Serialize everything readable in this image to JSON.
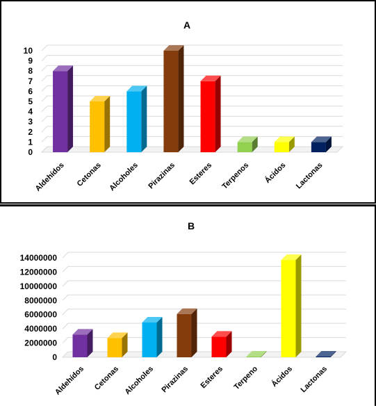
{
  "chart_data": [
    {
      "type": "bar",
      "title": "A",
      "categories": [
        "Aldehídos",
        "Cetonas",
        "Alcoholes",
        "Pirazinas",
        "Esteres",
        "Terpenos",
        "Ácidos",
        "Lactonas"
      ],
      "values": [
        8,
        5,
        6,
        10,
        7,
        1,
        1,
        1
      ],
      "colors": [
        "#7030a0",
        "#ffc000",
        "#00b0f0",
        "#843c0c",
        "#ff0000",
        "#92d050",
        "#ffff00",
        "#002060"
      ],
      "yticks": [
        "0",
        "1",
        "2",
        "3",
        "4",
        "5",
        "6",
        "7",
        "8",
        "9",
        "10"
      ],
      "ylim": [
        0,
        10
      ],
      "xlabel": "",
      "ylabel": "",
      "grid": true,
      "style": "3d"
    },
    {
      "type": "bar",
      "title": "B",
      "categories": [
        "Aldehídos",
        "Cetonas",
        "Alcoholes",
        "Pirazinas",
        "Esteres",
        "Terpeno",
        "Ácidos",
        "Lactonas"
      ],
      "values": [
        3200000,
        2700000,
        4900000,
        6100000,
        2900000,
        20000,
        13700000,
        20000
      ],
      "colors": [
        "#7030a0",
        "#ffc000",
        "#00b0f0",
        "#843c0c",
        "#ff0000",
        "#92d050",
        "#ffff00",
        "#002060"
      ],
      "yticks": [
        "0",
        "2000000",
        "4000000",
        "6000000",
        "8000000",
        "10000000",
        "12000000",
        "14000000"
      ],
      "ylim": [
        0,
        14000000
      ],
      "xlabel": "",
      "ylabel": "",
      "grid": true,
      "style": "3d"
    }
  ]
}
